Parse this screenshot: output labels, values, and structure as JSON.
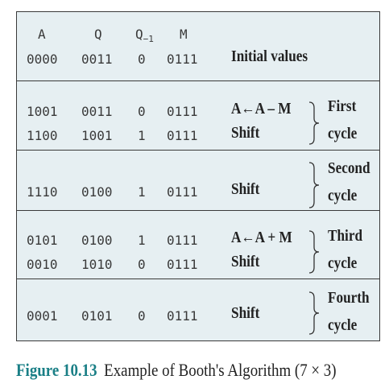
{
  "header": {
    "col_a": "A",
    "col_q": "Q",
    "col_q1_base": "Q",
    "col_q1_sub": "−1",
    "col_m": "M"
  },
  "rows": [
    {
      "a": "0000",
      "q": "0011",
      "q1": "0",
      "m": "0111",
      "op": "Initial values"
    },
    {
      "a": "1001",
      "q": "0011",
      "q1": "0",
      "m": "0111",
      "op": "A←A – M"
    },
    {
      "a": "1100",
      "q": "1001",
      "q1": "1",
      "m": "0111",
      "op": "Shift"
    },
    {
      "a": "1110",
      "q": "0100",
      "q1": "1",
      "m": "0111",
      "op": "Shift"
    },
    {
      "a": "0101",
      "q": "0100",
      "q1": "1",
      "m": "0111",
      "op": "A←A + M"
    },
    {
      "a": "0010",
      "q": "1010",
      "q1": "0",
      "m": "0111",
      "op": "Shift"
    },
    {
      "a": "0001",
      "q": "0101",
      "q1": "0",
      "m": "0111",
      "op": "Shift"
    }
  ],
  "cycles": [
    {
      "word": "First",
      "cycle": "cycle"
    },
    {
      "word": "Second",
      "cycle": "cycle"
    },
    {
      "word": "Third",
      "cycle": "cycle"
    },
    {
      "word": "Fourth",
      "cycle": "cycle"
    }
  ],
  "caption": {
    "label": "Figure 10.13",
    "text": "Example of Booth's Algorithm (7 × 3)"
  },
  "colors": {
    "table_bg": "#e6eff2",
    "caption_label": "#1a7f86"
  }
}
